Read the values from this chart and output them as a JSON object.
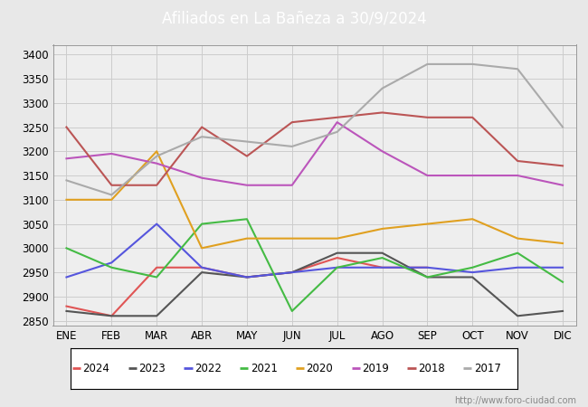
{
  "title": "Afiliados en La Bañeza a 30/9/2024",
  "title_bg": "#4a90d9",
  "title_color": "white",
  "ylim": [
    2840,
    3420
  ],
  "yticks": [
    2850,
    2900,
    2950,
    3000,
    3050,
    3100,
    3150,
    3200,
    3250,
    3300,
    3350,
    3400
  ],
  "months": [
    "ENE",
    "FEB",
    "MAR",
    "ABR",
    "MAY",
    "JUN",
    "JUL",
    "AGO",
    "SEP",
    "OCT",
    "NOV",
    "DIC"
  ],
  "watermark": "http://www.foro-ciudad.com",
  "series": {
    "2024": {
      "color": "#e05555",
      "data": [
        2880,
        2860,
        2960,
        2960,
        2940,
        2950,
        2980,
        2960,
        2960,
        null,
        null,
        null
      ]
    },
    "2023": {
      "color": "#555555",
      "data": [
        2870,
        2860,
        2860,
        2950,
        2940,
        2950,
        2990,
        2990,
        2940,
        2940,
        2860,
        2870
      ]
    },
    "2022": {
      "color": "#5555dd",
      "data": [
        2940,
        2970,
        3050,
        2960,
        2940,
        2950,
        2960,
        2960,
        2960,
        2950,
        2960,
        2960
      ]
    },
    "2021": {
      "color": "#44bb44",
      "data": [
        3000,
        2960,
        2940,
        3050,
        3060,
        2870,
        2960,
        2980,
        2940,
        2960,
        2990,
        2930
      ]
    },
    "2020": {
      "color": "#e0a020",
      "data": [
        3100,
        3100,
        3200,
        3000,
        3020,
        3020,
        3020,
        3040,
        3050,
        3060,
        3020,
        3010
      ]
    },
    "2019": {
      "color": "#bb55bb",
      "data": [
        3185,
        3195,
        3175,
        3145,
        3130,
        3130,
        3260,
        3200,
        3150,
        3150,
        3150,
        3130
      ]
    },
    "2018": {
      "color": "#bb5555",
      "data": [
        3250,
        3130,
        3130,
        3250,
        3190,
        3260,
        3270,
        3280,
        3270,
        3270,
        3180,
        3170
      ]
    },
    "2017": {
      "color": "#aaaaaa",
      "data": [
        3140,
        3110,
        3190,
        3230,
        3220,
        3210,
        3240,
        3330,
        3380,
        3380,
        3370,
        3250
      ]
    }
  },
  "legend_order": [
    "2024",
    "2023",
    "2022",
    "2021",
    "2020",
    "2019",
    "2018",
    "2017"
  ],
  "bg_color": "#e8e8e8",
  "plot_bg": "#eeeeee",
  "grid_color": "#cccccc"
}
